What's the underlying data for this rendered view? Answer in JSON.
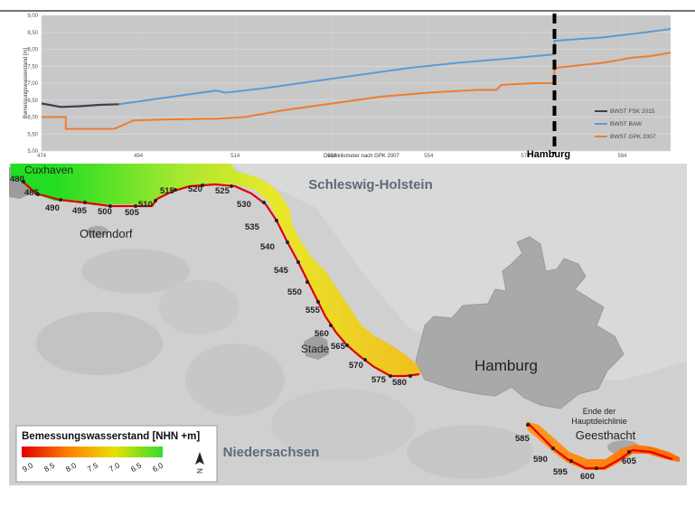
{
  "chart": {
    "xlabel": "Deichkilometer nach GPK 2007",
    "ylabel": "Bemessungswasserstand [m]",
    "y_ticks": [
      "5,00",
      "5,50",
      "6,00",
      "6,50",
      "7,00",
      "7,50",
      "8,00",
      "8,50",
      "9,00"
    ],
    "x_ticks": [
      "474",
      "494",
      "514",
      "534",
      "554",
      "574",
      "594"
    ],
    "hamburg_marker": "Hamburg",
    "legend": [
      "BWST FSK 2015",
      "BWST BAW",
      "BWST GPK 2007"
    ],
    "colors": {
      "fsk": "#3a4050",
      "baw": "#5b9bd5",
      "gpk": "#ed7d31"
    }
  },
  "chart_data": {
    "type": "line",
    "xlabel": "Deichkilometer nach GPK 2007",
    "ylabel": "Bemessungswasserstand [m]",
    "xlim": [
      474,
      604
    ],
    "ylim": [
      5.0,
      9.0
    ],
    "vertical_marker": {
      "x": 580,
      "label": "Hamburg"
    },
    "series": [
      {
        "name": "BWST FSK 2015",
        "color": "#3a4050",
        "points": [
          [
            474,
            6.4
          ],
          [
            478,
            6.3
          ],
          [
            482,
            6.32
          ],
          [
            486,
            6.36
          ],
          [
            490,
            6.38
          ]
        ]
      },
      {
        "name": "BWST BAW",
        "color": "#5b9bd5",
        "points": [
          [
            490,
            6.38
          ],
          [
            500,
            6.58
          ],
          [
            510,
            6.78
          ],
          [
            512,
            6.72
          ],
          [
            520,
            6.85
          ],
          [
            530,
            7.05
          ],
          [
            540,
            7.25
          ],
          [
            550,
            7.45
          ],
          [
            560,
            7.6
          ],
          [
            570,
            7.72
          ],
          [
            580,
            7.85
          ],
          [
            580,
            8.25
          ],
          [
            590,
            8.35
          ],
          [
            600,
            8.52
          ],
          [
            604,
            8.6
          ]
        ]
      },
      {
        "name": "BWST GPK 2007",
        "color": "#ed7d31",
        "points": [
          [
            474,
            6.0
          ],
          [
            479,
            6.0
          ],
          [
            479,
            5.65
          ],
          [
            489,
            5.65
          ],
          [
            493,
            5.9
          ],
          [
            500,
            5.93
          ],
          [
            510,
            5.95
          ],
          [
            516,
            6.0
          ],
          [
            524,
            6.2
          ],
          [
            534,
            6.4
          ],
          [
            544,
            6.6
          ],
          [
            554,
            6.72
          ],
          [
            564,
            6.8
          ],
          [
            568,
            6.8
          ],
          [
            569,
            6.95
          ],
          [
            576,
            7.0
          ],
          [
            580,
            7.0
          ],
          [
            580,
            7.45
          ],
          [
            590,
            7.6
          ],
          [
            596,
            7.75
          ],
          [
            600,
            7.8
          ],
          [
            604,
            7.9
          ]
        ]
      }
    ]
  },
  "map": {
    "places": {
      "cuxhaven": "Cuxhaven",
      "otterndorf": "Otterndorf",
      "stade": "Stade",
      "hamburg": "Hamburg",
      "schleswig_holstein": "Schleswig-Holstein",
      "niedersachsen": "Niedersachsen",
      "geesthacht": "Geesthacht",
      "ende1": "Ende der",
      "ende2": "Hauptdeichlinie"
    },
    "km_labels": [
      "480",
      "485",
      "490",
      "495",
      "500",
      "505",
      "510",
      "515",
      "520",
      "525",
      "530",
      "535",
      "540",
      "545",
      "550",
      "555",
      "560",
      "565",
      "570",
      "575",
      "580",
      "585",
      "590",
      "595",
      "600",
      "605"
    ],
    "legend": {
      "title": "Bemessungswasserstand [NHN +m]",
      "ticks": [
        "9.0",
        "8.5",
        "8.0",
        "7.5",
        "7.0",
        "6.5",
        "6.0"
      ],
      "north": "N"
    }
  }
}
